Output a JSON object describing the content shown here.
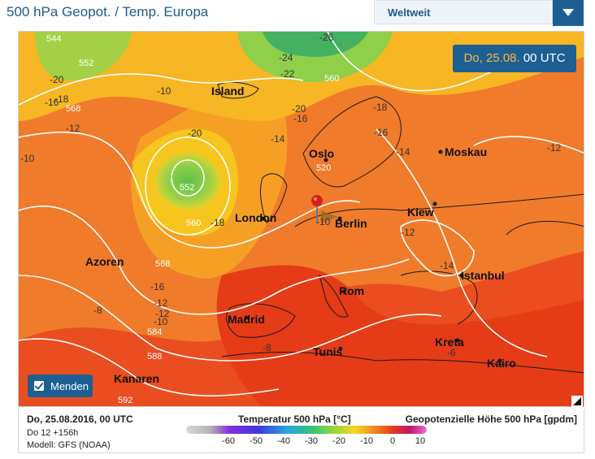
{
  "header": {
    "title": "500 hPa Geopot. / Temp. Europa",
    "region_select": "Weltweit"
  },
  "time_badge": {
    "date": "Do, 25.08.",
    "time": "00 UTC"
  },
  "map": {
    "cities": [
      "Island",
      "Oslo",
      "Moskau",
      "London",
      "Berlin",
      "Kiew",
      "Azoren",
      "Istanbul",
      "Rom",
      "Madrid",
      "Tunis",
      "Kreta",
      "Kairo",
      "Kanaren"
    ],
    "isohypse_labels": [
      "544",
      "552",
      "568",
      "552",
      "560",
      "560",
      "568",
      "584",
      "588",
      "592",
      "520"
    ],
    "temp_labels": [
      "-20",
      "-18",
      "-16",
      "-10",
      "-12",
      "-10",
      "-20",
      "-18",
      "-16",
      "-12",
      "-8",
      "-12",
      "-10",
      "-24",
      "-22",
      "-20",
      "-16",
      "-18",
      "-16",
      "-14",
      "-14",
      "-12",
      "-12",
      "-14",
      "-8",
      "-6",
      "-10",
      "-26"
    ]
  },
  "menden": {
    "label": "Menden"
  },
  "footer": {
    "date_line": "Do, 25.08.2016, 00 UTC",
    "run_line": "Do 12 +156h",
    "model_line": "Modell: GFS (NOAA)",
    "temp_legend_title": "Temperatur 500 hPa [°C]",
    "geo_legend_title": "Geopotenzielle Höhe 500 hPa [gpdm]",
    "legend_ticks": [
      "-60",
      "-50",
      "-40",
      "-30",
      "-20",
      "-10",
      "0",
      "10"
    ]
  },
  "colors": {
    "brand": "#1d5f93",
    "orange": "#f07a2a",
    "red": "#e8401c",
    "yellow": "#f7c41a",
    "green": "#6cc24a"
  }
}
